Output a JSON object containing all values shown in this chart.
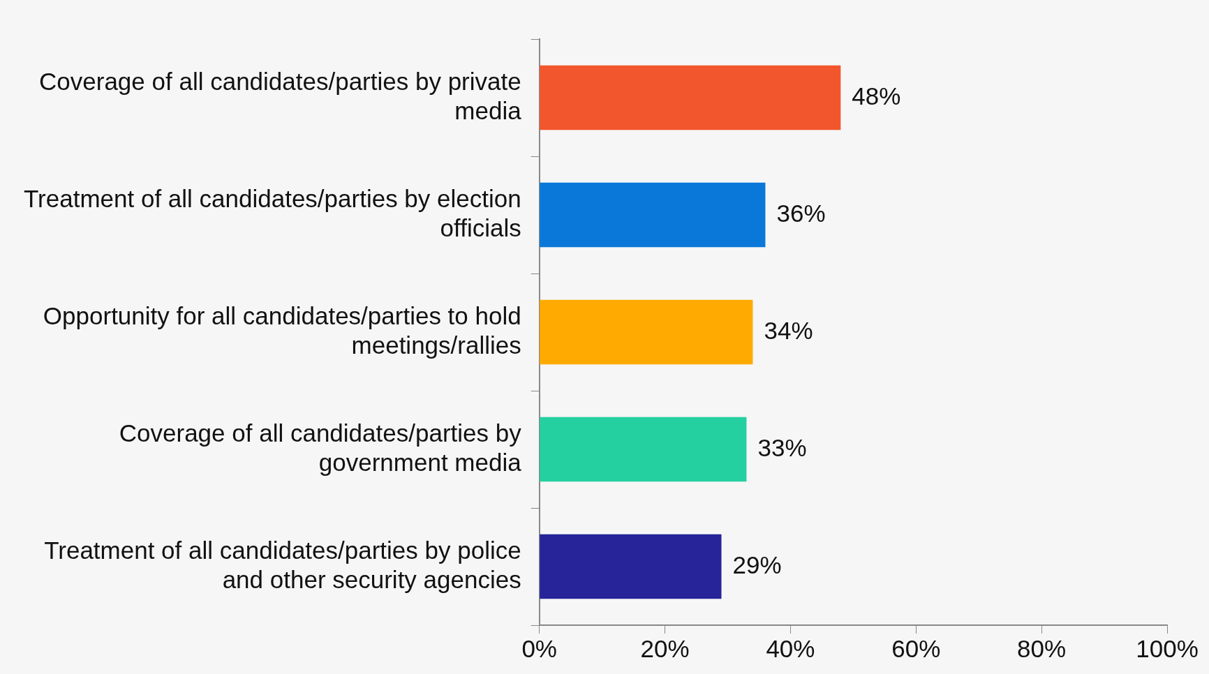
{
  "chart_data": {
    "type": "bar",
    "orientation": "horizontal",
    "categories": [
      "Coverage of all candidates/parties by private media",
      "Treatment of all candidates/parties by election officials",
      "Opportunity for all candidates/parties to hold meetings/rallies",
      "Coverage of all candidates/parties by government media",
      "Treatment of all candidates/parties by police and other security agencies"
    ],
    "values": [
      48,
      36,
      34,
      33,
      29
    ],
    "colors": [
      "#f2562c",
      "#0a78d8",
      "#ffaa00",
      "#25d0a0",
      "#262498"
    ],
    "value_labels": [
      "48%",
      "36%",
      "34%",
      "33%",
      "29%"
    ],
    "xlim": [
      0,
      100
    ],
    "xticks": [
      {
        "value": 0,
        "label": "0%"
      },
      {
        "value": 20,
        "label": "20%"
      },
      {
        "value": 40,
        "label": "40%"
      },
      {
        "value": 60,
        "label": "60%"
      },
      {
        "value": 80,
        "label": "80%"
      },
      {
        "value": 100,
        "label": "100%"
      }
    ],
    "grid": false,
    "legend": false
  }
}
